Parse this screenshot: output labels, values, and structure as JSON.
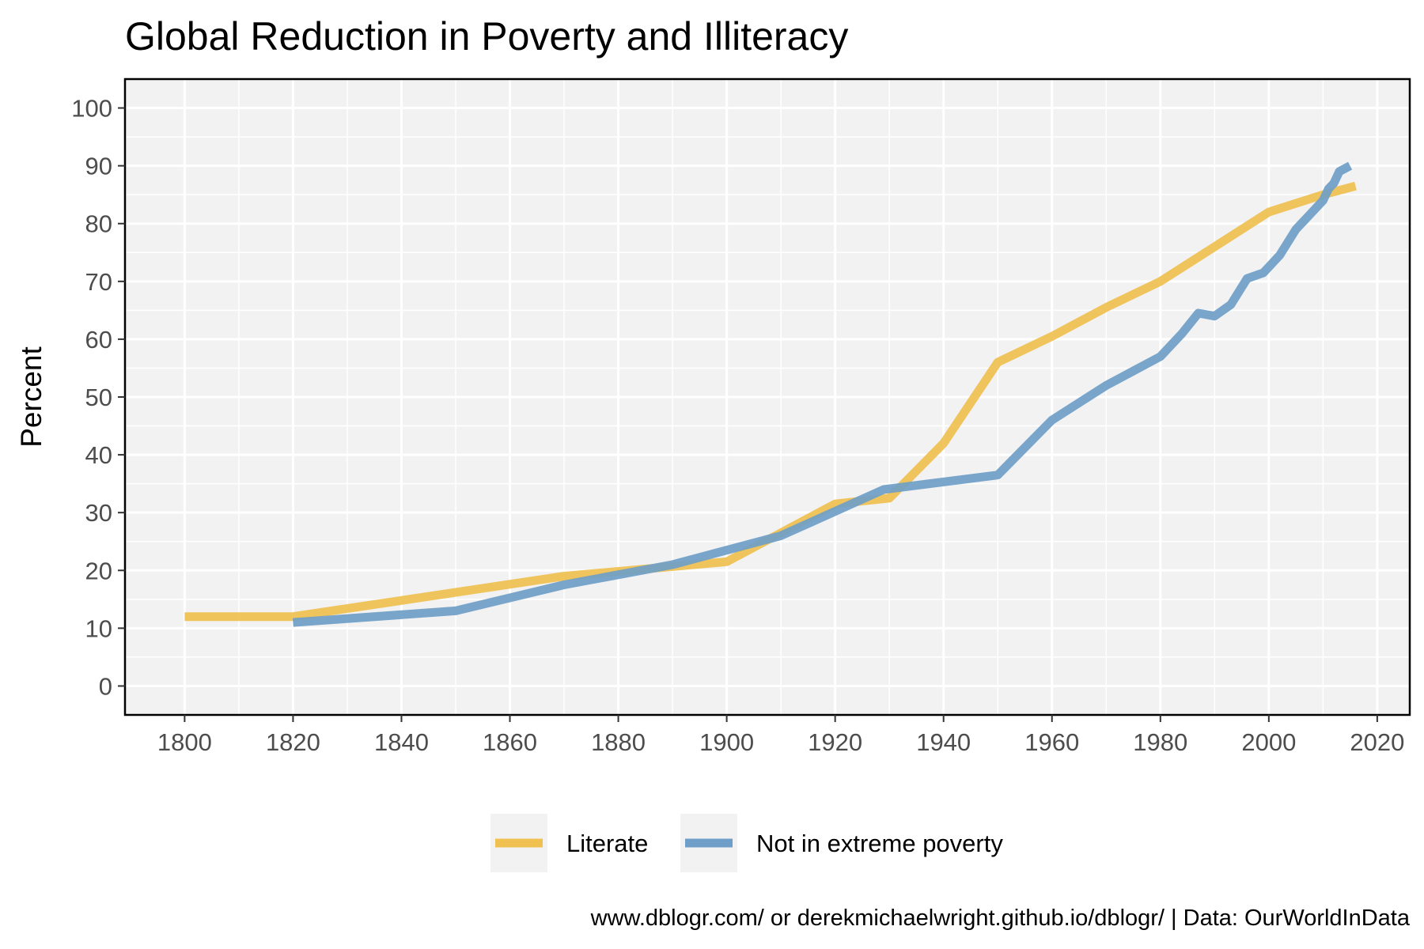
{
  "chart_data": {
    "type": "line",
    "title": "Global Reduction in Poverty and Illiteracy",
    "xlabel": "",
    "ylabel": "Percent",
    "xlim": [
      1789,
      2026
    ],
    "ylim": [
      -5,
      105
    ],
    "x_ticks": [
      "1800",
      "1820",
      "1840",
      "1860",
      "1880",
      "1900",
      "1920",
      "1940",
      "1960",
      "1980",
      "2000",
      "2020"
    ],
    "y_ticks": [
      "0",
      "10",
      "20",
      "30",
      "40",
      "50",
      "60",
      "70",
      "80",
      "90",
      "100"
    ],
    "grid": true,
    "legend_position": "bottom",
    "caption": "www.dblogr.com/ or derekmichaelwright.github.io/dblogr/ | Data: OurWorldInData",
    "panel_background": "#f2f2f2",
    "series": [
      {
        "name": "Literate",
        "color": "#f0c050",
        "x": [
          1800,
          1820,
          1870,
          1900,
          1920,
          1930,
          1940,
          1950,
          1960,
          1970,
          1980,
          1990,
          2000,
          2010,
          2016
        ],
        "y": [
          12,
          12,
          19,
          21.5,
          31.5,
          32.5,
          42,
          56,
          60.5,
          65.5,
          70,
          76,
          82,
          85,
          86.5
        ]
      },
      {
        "name": "Not in extreme poverty",
        "color": "#6f9ec8",
        "x": [
          1820,
          1850,
          1870,
          1890,
          1910,
          1929,
          1950,
          1960,
          1970,
          1975,
          1980,
          1984,
          1987,
          1990,
          1993,
          1996,
          1999,
          2002,
          2005,
          2008,
          2010,
          2011,
          2012,
          2013,
          2015
        ],
        "y": [
          11,
          13,
          17.5,
          21,
          26,
          34,
          36.5,
          46,
          52,
          54.5,
          57,
          61,
          64.5,
          64,
          66,
          70.5,
          71.5,
          74.5,
          79,
          82,
          84,
          86,
          87,
          89,
          90
        ]
      }
    ]
  }
}
